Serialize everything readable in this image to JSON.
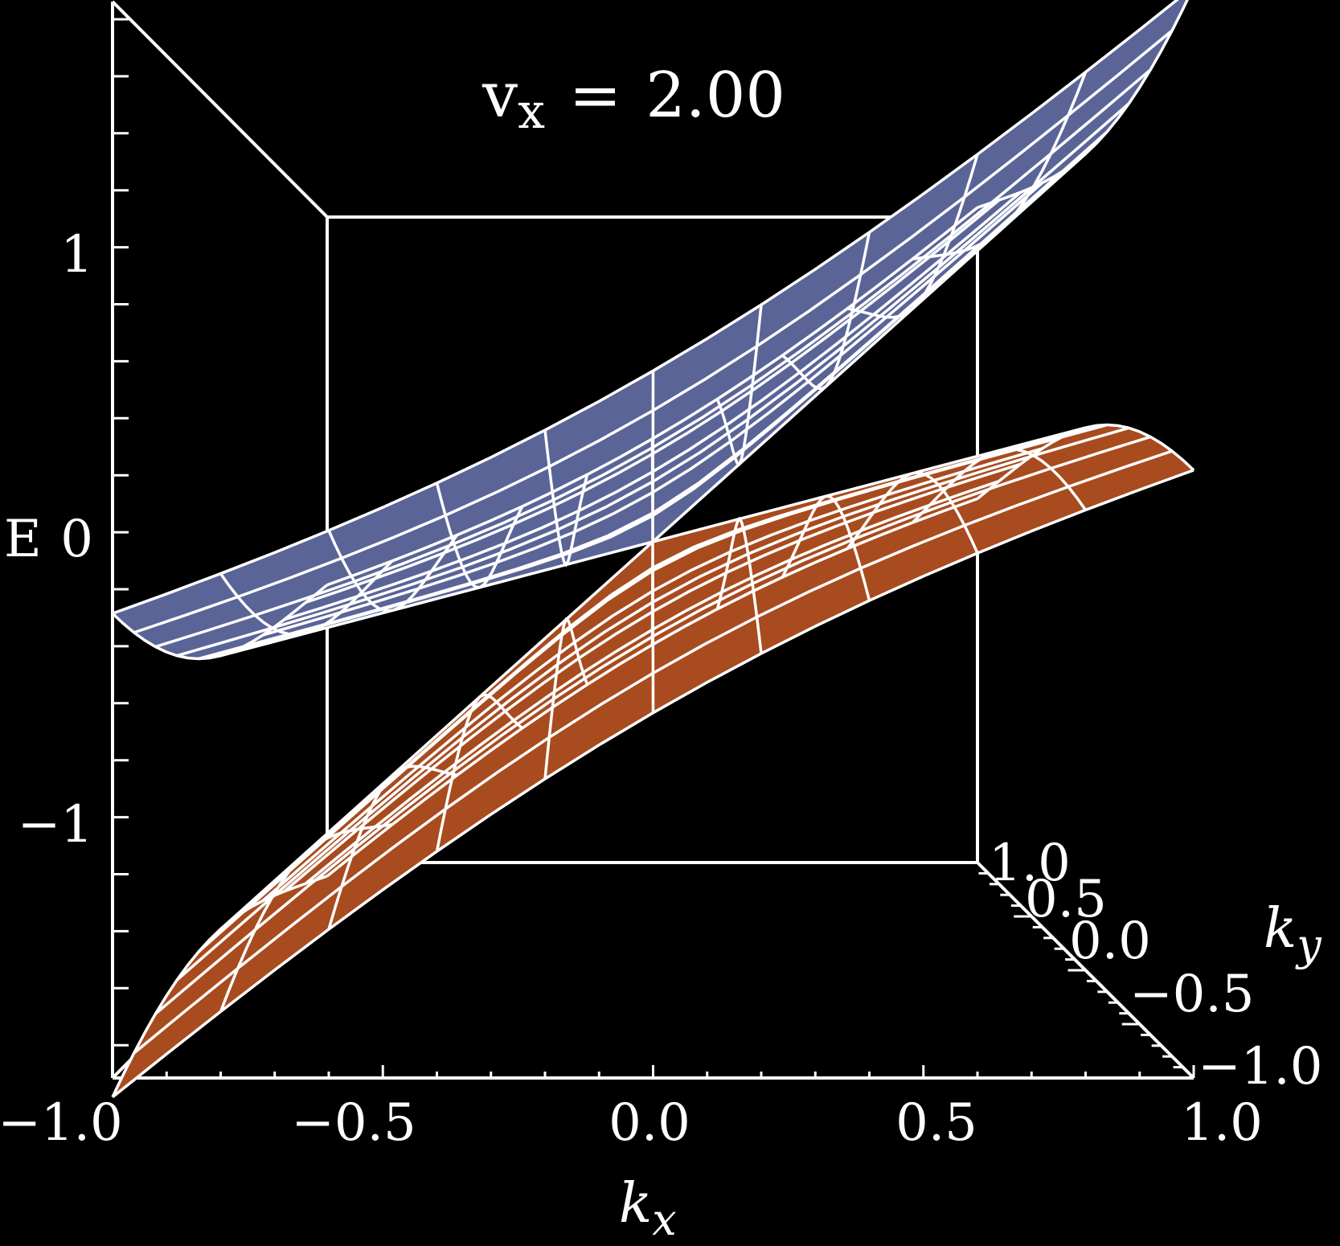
{
  "chart_data": {
    "type": "surface3d",
    "annotation": {
      "label_main": "v",
      "label_sub": "x",
      "equals": "=",
      "value": "2.00"
    },
    "axes": {
      "x": {
        "label_main": "k",
        "label_sub": "x",
        "range": [
          -1.0,
          1.0
        ],
        "ticks": [
          "−1.0",
          "−0.5",
          "0.0",
          "0.5",
          "1.0"
        ]
      },
      "y": {
        "label_main": "k",
        "label_sub": "y",
        "range": [
          -1.0,
          1.0
        ],
        "ticks": [
          "1.0",
          "0.5",
          "0.0",
          "−0.5",
          "−1.0"
        ]
      },
      "z": {
        "label": "E",
        "range": [
          -1.9,
          1.9
        ],
        "ticks": [
          "1",
          "0",
          "−1"
        ]
      }
    },
    "surfaces": [
      {
        "band": "upper",
        "color": "#5b6497"
      },
      {
        "band": "lower",
        "color": "#a84b1e"
      }
    ],
    "mesh_color": "#ffffff",
    "box_color": "#ffffff"
  }
}
